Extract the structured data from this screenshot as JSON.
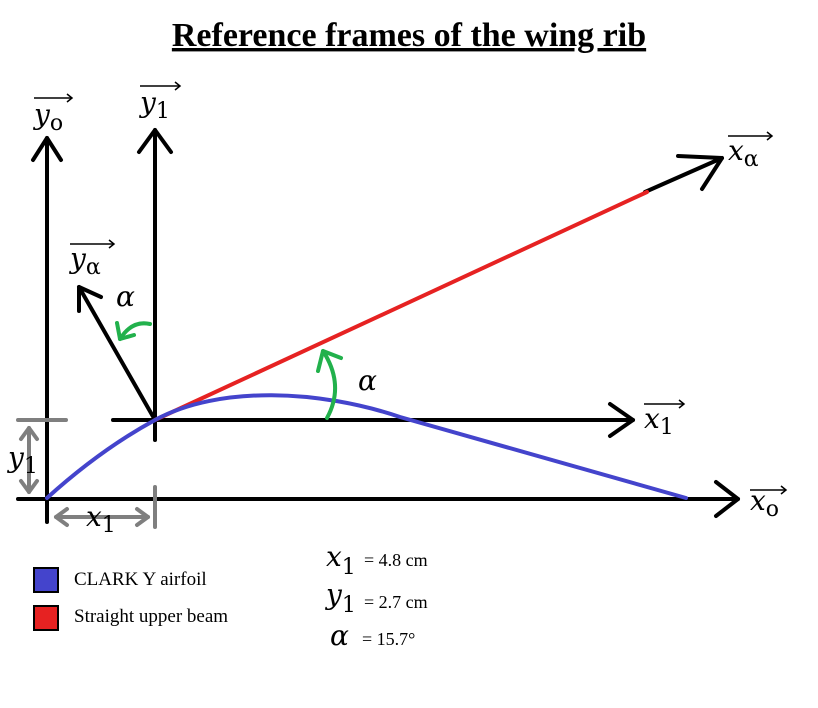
{
  "title": "Reference frames of the wing rib",
  "axes": {
    "y_o": {
      "base": "y",
      "sub": "o"
    },
    "y_1": {
      "base": "y",
      "sub": "1"
    },
    "x_alpha": {
      "base": "x",
      "sub": "α"
    },
    "y_alpha": {
      "base": "y",
      "sub": "α"
    },
    "x_1": {
      "base": "x",
      "sub": "1"
    },
    "x_o": {
      "base": "x",
      "sub": "o"
    }
  },
  "angle_symbol": "α",
  "dimensions": {
    "y_1": {
      "base": "y",
      "sub": "1"
    },
    "x_1": {
      "base": "x",
      "sub": "1"
    }
  },
  "legend": [
    {
      "label": "CLARK Y airfoil",
      "color": "#4444cc"
    },
    {
      "label": "Straight upper beam",
      "color": "#e62222"
    }
  ],
  "values": [
    {
      "base": "x",
      "sub": "1",
      "text": "= 4.8 cm"
    },
    {
      "base": "y",
      "sub": "1",
      "text": "= 2.7 cm"
    },
    {
      "base": "α",
      "sub": "",
      "text": "= 15.7°"
    }
  ],
  "colors": {
    "axis": "#000000",
    "airfoil": "#4444cc",
    "beam": "#e62222",
    "angle_arrow": "#22b14c",
    "dimension": "#7f7f7f"
  }
}
